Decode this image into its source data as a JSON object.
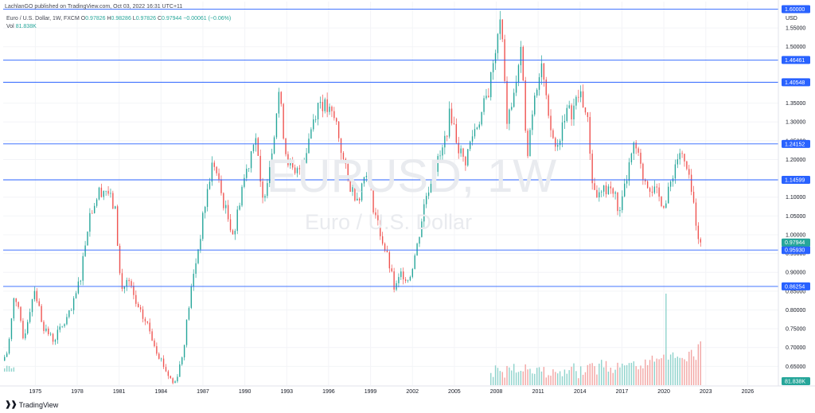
{
  "header": {
    "published": "LachlanGO published on TradingView.com, Oct 03, 2022 16:31 UTC+11",
    "symbol": "Euro / U.S. Dollar, 1W, FXCM",
    "ohlc": [
      {
        "label": "O",
        "value": "0.97826"
      },
      {
        "label": "H",
        "value": "0.98286"
      },
      {
        "label": "L",
        "value": "0.97826"
      },
      {
        "label": "C",
        "value": "0.97944"
      }
    ],
    "change": "−0.00061 (−0.06%)",
    "vol_label": "Vol",
    "vol_value": "81.838K"
  },
  "watermark": {
    "symbol": "EURUSD, 1W",
    "name": "Euro / U.S. Dollar"
  },
  "brand": {
    "name": "TradingView"
  },
  "colors": {
    "up": "#26a69a",
    "down": "#ef5350",
    "level": "#2962ff",
    "vol_up": "#8fd3cc",
    "vol_down": "#f2a5a3",
    "axis_text": "#131722"
  },
  "chart_data": {
    "type": "candlestick",
    "currency": "USD",
    "y_ticks": [
      "1.55000",
      "1.50000",
      "1.35000",
      "1.30000",
      "1.25000",
      "1.20000",
      "1.10000",
      "1.05000",
      "1.00000",
      "0.95000",
      "0.90000",
      "0.85000",
      "0.80000",
      "0.75000",
      "0.70000",
      "0.65000"
    ],
    "ylim": [
      0.6,
      1.62
    ],
    "x_ticks": [
      "1975",
      "1978",
      "1981",
      "1984",
      "1987",
      "1990",
      "1993",
      "1996",
      "1999",
      "2002",
      "2005",
      "2008",
      "2011",
      "2014",
      "2017",
      "2020",
      "2023",
      "2026"
    ],
    "xlim": [
      1972.7,
      2028.2
    ],
    "horizontal_levels": [
      "1.60000",
      "1.46461",
      "1.40548",
      "1.24152",
      "1.14599",
      "0.95930",
      "0.86254"
    ],
    "last_price": "0.97944",
    "last_volume": "81.838K",
    "price_path": [
      [
        1972.8,
        0.665
      ],
      [
        1973.2,
        0.69
      ],
      [
        1973.7,
        0.85
      ],
      [
        1974.3,
        0.72
      ],
      [
        1975.1,
        0.86
      ],
      [
        1975.7,
        0.76
      ],
      [
        1976.4,
        0.72
      ],
      [
        1977.0,
        0.75
      ],
      [
        1977.8,
        0.8
      ],
      [
        1978.4,
        0.89
      ],
      [
        1979.0,
        1.05
      ],
      [
        1979.8,
        1.12
      ],
      [
        1980.3,
        1.12
      ],
      [
        1980.9,
        1.06
      ],
      [
        1981.3,
        0.85
      ],
      [
        1981.8,
        0.88
      ],
      [
        1982.5,
        0.8
      ],
      [
        1983.2,
        0.76
      ],
      [
        1983.8,
        0.7
      ],
      [
        1984.5,
        0.64
      ],
      [
        1985.1,
        0.6
      ],
      [
        1985.7,
        0.68
      ],
      [
        1986.3,
        0.85
      ],
      [
        1986.9,
        0.98
      ],
      [
        1987.4,
        1.1
      ],
      [
        1987.9,
        1.2
      ],
      [
        1988.4,
        1.12
      ],
      [
        1988.9,
        1.05
      ],
      [
        1989.4,
        1.0
      ],
      [
        1989.9,
        1.12
      ],
      [
        1990.5,
        1.2
      ],
      [
        1990.9,
        1.28
      ],
      [
        1991.4,
        1.08
      ],
      [
        1992.0,
        1.2
      ],
      [
        1992.6,
        1.38
      ],
      [
        1993.1,
        1.22
      ],
      [
        1993.7,
        1.15
      ],
      [
        1994.4,
        1.2
      ],
      [
        1995.0,
        1.3
      ],
      [
        1995.5,
        1.36
      ],
      [
        1996.1,
        1.33
      ],
      [
        1996.7,
        1.3
      ],
      [
        1997.3,
        1.18
      ],
      [
        1997.8,
        1.12
      ],
      [
        1998.3,
        1.1
      ],
      [
        1998.9,
        1.18
      ],
      [
        1999.4,
        1.07
      ],
      [
        1999.9,
        1.0
      ],
      [
        2000.5,
        0.92
      ],
      [
        2000.9,
        0.85
      ],
      [
        2001.4,
        0.9
      ],
      [
        2001.9,
        0.88
      ],
      [
        2002.5,
        0.97
      ],
      [
        2003.1,
        1.1
      ],
      [
        2003.7,
        1.17
      ],
      [
        2004.3,
        1.22
      ],
      [
        2004.9,
        1.33
      ],
      [
        2005.4,
        1.24
      ],
      [
        2005.9,
        1.19
      ],
      [
        2006.5,
        1.27
      ],
      [
        2007.1,
        1.32
      ],
      [
        2007.6,
        1.38
      ],
      [
        2008.1,
        1.48
      ],
      [
        2008.5,
        1.58
      ],
      [
        2008.9,
        1.3
      ],
      [
        2009.4,
        1.36
      ],
      [
        2009.9,
        1.49
      ],
      [
        2010.4,
        1.22
      ],
      [
        2010.9,
        1.38
      ],
      [
        2011.4,
        1.46
      ],
      [
        2011.9,
        1.3
      ],
      [
        2012.5,
        1.22
      ],
      [
        2013.0,
        1.32
      ],
      [
        2013.6,
        1.33
      ],
      [
        2014.2,
        1.38
      ],
      [
        2014.7,
        1.3
      ],
      [
        2015.1,
        1.12
      ],
      [
        2015.6,
        1.1
      ],
      [
        2016.2,
        1.13
      ],
      [
        2016.7,
        1.1
      ],
      [
        2017.0,
        1.05
      ],
      [
        2017.6,
        1.17
      ],
      [
        2018.1,
        1.24
      ],
      [
        2018.6,
        1.16
      ],
      [
        2019.2,
        1.13
      ],
      [
        2019.8,
        1.1
      ],
      [
        2020.3,
        1.08
      ],
      [
        2020.9,
        1.18
      ],
      [
        2021.3,
        1.22
      ],
      [
        2021.8,
        1.17
      ],
      [
        2022.2,
        1.1
      ],
      [
        2022.5,
        1.03
      ],
      [
        2022.75,
        0.97944
      ]
    ]
  }
}
